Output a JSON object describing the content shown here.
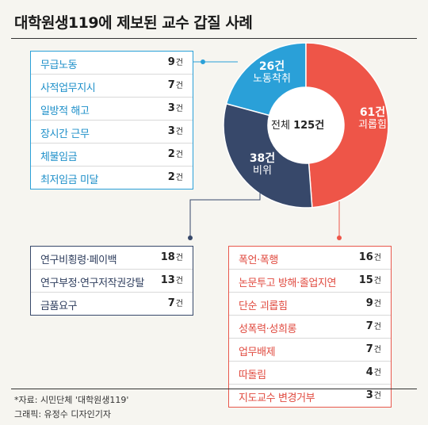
{
  "title": "대학원생119에 제보된 교수 갑질 사례",
  "unit": "건",
  "chart_data": {
    "type": "pie",
    "title": "대학원생119에 제보된 교수 갑질 사례",
    "center_label": "전체",
    "total": 125,
    "total_text": "125건",
    "slices": [
      {
        "label": "노동착취",
        "value": 26,
        "value_text": "26건",
        "color": "#2aa0d8"
      },
      {
        "label": "괴롭힘",
        "value": 61,
        "value_text": "61건",
        "color": "#ee5548"
      },
      {
        "label": "비위",
        "value": 38,
        "value_text": "38건",
        "color": "#37486a"
      }
    ],
    "breakdowns": {
      "labor": [
        {
          "label": "무급노동",
          "value": 9
        },
        {
          "label": "사적업무지시",
          "value": 7
        },
        {
          "label": "일방적 해고",
          "value": 3
        },
        {
          "label": "장시간 근무",
          "value": 3
        },
        {
          "label": "체불임금",
          "value": 2
        },
        {
          "label": "최저임금 미달",
          "value": 2
        }
      ],
      "misconduct": [
        {
          "label": "연구비횡령·페이백",
          "value": 18
        },
        {
          "label": "연구부정·연구저작권강탈",
          "value": 13
        },
        {
          "label": "금품요구",
          "value": 7
        }
      ],
      "harassment": [
        {
          "label": "폭언·폭행",
          "value": 16
        },
        {
          "label": "논문투고 방해·졸업지연",
          "value": 15
        },
        {
          "label": "단순 괴롭힘",
          "value": 9
        },
        {
          "label": "성폭력·성희롱",
          "value": 7
        },
        {
          "label": "업무배제",
          "value": 7
        },
        {
          "label": "따돌림",
          "value": 4
        },
        {
          "label": "지도교수 변경거부",
          "value": 3
        }
      ]
    }
  },
  "footer": {
    "source": "*자료: 시민단체 '대학원생119'",
    "credit": "그래픽: 유정수 디자인기자"
  }
}
